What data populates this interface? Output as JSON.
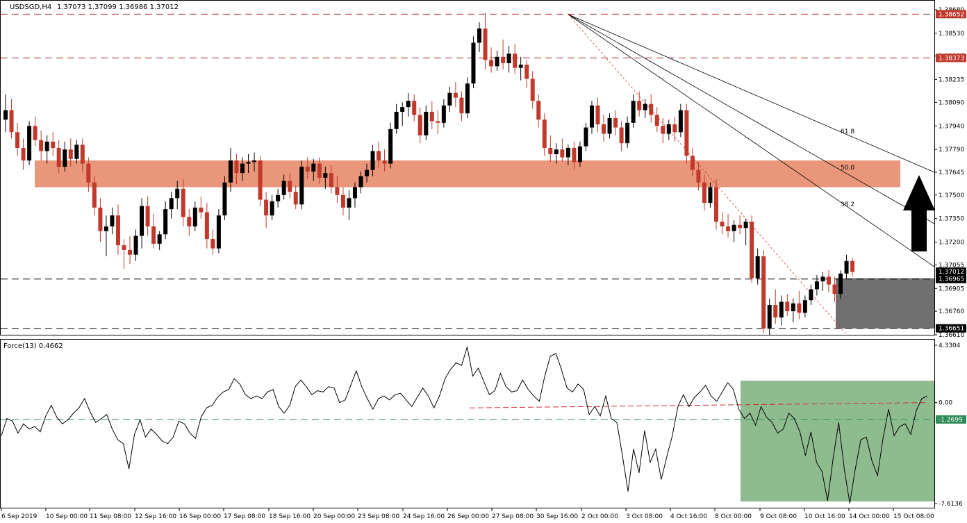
{
  "header": {
    "symbol": "USDSGD,H4",
    "ohlc": "1.37073 1.37099 1.36986 1.37012"
  },
  "indicator": {
    "label": "Force(13) 0.4662",
    "ticks": [
      "4.3304",
      "0.00",
      "-7.6136"
    ],
    "level_tag": "-1.2699"
  },
  "price_axis": {
    "ticks": [
      "1.38680",
      "1.38530",
      "1.38385",
      "1.38235",
      "1.38090",
      "1.37940",
      "1.37790",
      "1.37645",
      "1.37500",
      "1.37350",
      "1.37200",
      "1.37055",
      "1.36905",
      "1.36760",
      "1.36610"
    ],
    "levels": [
      {
        "value": "1.38652",
        "style": "red-dash"
      },
      {
        "value": "1.38373",
        "style": "red-dash"
      },
      {
        "value": "1.36965",
        "style": "black-dash"
      },
      {
        "value": "1.36651",
        "style": "black-dash"
      }
    ],
    "current": "1.37012"
  },
  "fib_labels": [
    "61.8",
    "50.0",
    "38.2"
  ],
  "time_axis": [
    "6 Sep 2019",
    "10 Sep 00:00",
    "11 Sep 08:00",
    "12 Sep 16:00",
    "16 Sep 00:00",
    "17 Sep 08:00",
    "18 Sep 16:00",
    "20 Sep 00:00",
    "23 Sep 08:00",
    "24 Sep 16:00",
    "26 Sep 00:00",
    "27 Sep 08:00",
    "30 Sep 16:00",
    "2 Oct 00:00",
    "3 Oct 08:00",
    "4 Oct 16:00",
    "8 Oct 00:00",
    "9 Oct 08:00",
    "10 Oct 16:00",
    "14 Oct 00:00",
    "15 Oct 08:00"
  ],
  "colors": {
    "bull": "#000000",
    "bear": "#c0392b",
    "resistance_zone": "#e9967a",
    "support_zone": "#707070",
    "force_zone": "#8fbc8f",
    "level_red": "#b22222",
    "arrow": "#000000"
  },
  "chart_data": {
    "type": "candlestick",
    "symbol": "USDSGD",
    "timeframe": "H4",
    "ylim": [
      1.3661,
      1.3868
    ],
    "resistance_zone": [
      1.3755,
      1.3772
    ],
    "support_zone": [
      1.3665,
      1.3697
    ],
    "candles": [
      {
        "o": 1.3798,
        "h": 1.3814,
        "l": 1.379,
        "c": 1.3804
      },
      {
        "o": 1.3804,
        "h": 1.3811,
        "l": 1.3786,
        "c": 1.379
      },
      {
        "o": 1.379,
        "h": 1.3796,
        "l": 1.3775,
        "c": 1.378
      },
      {
        "o": 1.378,
        "h": 1.3786,
        "l": 1.3766,
        "c": 1.3772
      },
      {
        "o": 1.3772,
        "h": 1.3797,
        "l": 1.3769,
        "c": 1.3794
      },
      {
        "o": 1.3794,
        "h": 1.38,
        "l": 1.3781,
        "c": 1.3785
      },
      {
        "o": 1.3785,
        "h": 1.3791,
        "l": 1.3772,
        "c": 1.3778
      },
      {
        "o": 1.3778,
        "h": 1.3788,
        "l": 1.377,
        "c": 1.3784
      },
      {
        "o": 1.3784,
        "h": 1.379,
        "l": 1.3775,
        "c": 1.378
      },
      {
        "o": 1.378,
        "h": 1.3785,
        "l": 1.3764,
        "c": 1.3768
      },
      {
        "o": 1.3768,
        "h": 1.3784,
        "l": 1.3765,
        "c": 1.3779
      },
      {
        "o": 1.3779,
        "h": 1.3786,
        "l": 1.3768,
        "c": 1.3773
      },
      {
        "o": 1.3773,
        "h": 1.3785,
        "l": 1.377,
        "c": 1.3782
      },
      {
        "o": 1.3782,
        "h": 1.3786,
        "l": 1.3765,
        "c": 1.377
      },
      {
        "o": 1.377,
        "h": 1.3774,
        "l": 1.3752,
        "c": 1.3758
      },
      {
        "o": 1.3758,
        "h": 1.3762,
        "l": 1.3737,
        "c": 1.3742
      },
      {
        "o": 1.3742,
        "h": 1.3748,
        "l": 1.372,
        "c": 1.3727
      },
      {
        "o": 1.3727,
        "h": 1.3737,
        "l": 1.3711,
        "c": 1.373
      },
      {
        "o": 1.373,
        "h": 1.3742,
        "l": 1.3725,
        "c": 1.3737
      },
      {
        "o": 1.3737,
        "h": 1.3744,
        "l": 1.3712,
        "c": 1.3718
      },
      {
        "o": 1.3718,
        "h": 1.3722,
        "l": 1.3703,
        "c": 1.3715
      },
      {
        "o": 1.3715,
        "h": 1.3724,
        "l": 1.3706,
        "c": 1.3712
      },
      {
        "o": 1.3712,
        "h": 1.3728,
        "l": 1.3708,
        "c": 1.3724
      },
      {
        "o": 1.3724,
        "h": 1.3748,
        "l": 1.3716,
        "c": 1.3743
      },
      {
        "o": 1.3743,
        "h": 1.3749,
        "l": 1.3724,
        "c": 1.373
      },
      {
        "o": 1.373,
        "h": 1.3738,
        "l": 1.3716,
        "c": 1.3719
      },
      {
        "o": 1.3719,
        "h": 1.3727,
        "l": 1.3715,
        "c": 1.3725
      },
      {
        "o": 1.3725,
        "h": 1.3746,
        "l": 1.3722,
        "c": 1.3741
      },
      {
        "o": 1.3741,
        "h": 1.3752,
        "l": 1.3735,
        "c": 1.3748
      },
      {
        "o": 1.3748,
        "h": 1.3759,
        "l": 1.3741,
        "c": 1.3754
      },
      {
        "o": 1.3754,
        "h": 1.376,
        "l": 1.373,
        "c": 1.3736
      },
      {
        "o": 1.3736,
        "h": 1.3741,
        "l": 1.3724,
        "c": 1.373
      },
      {
        "o": 1.373,
        "h": 1.3746,
        "l": 1.3727,
        "c": 1.3742
      },
      {
        "o": 1.3742,
        "h": 1.3749,
        "l": 1.3735,
        "c": 1.3739
      },
      {
        "o": 1.3739,
        "h": 1.3745,
        "l": 1.3716,
        "c": 1.3722
      },
      {
        "o": 1.3722,
        "h": 1.3728,
        "l": 1.3712,
        "c": 1.3716
      },
      {
        "o": 1.3716,
        "h": 1.3741,
        "l": 1.3713,
        "c": 1.3737
      },
      {
        "o": 1.3737,
        "h": 1.3762,
        "l": 1.3734,
        "c": 1.3758
      },
      {
        "o": 1.3758,
        "h": 1.378,
        "l": 1.3752,
        "c": 1.3772
      },
      {
        "o": 1.3772,
        "h": 1.3776,
        "l": 1.3757,
        "c": 1.3764
      },
      {
        "o": 1.3764,
        "h": 1.3774,
        "l": 1.3759,
        "c": 1.377
      },
      {
        "o": 1.377,
        "h": 1.3776,
        "l": 1.3764,
        "c": 1.3771
      },
      {
        "o": 1.3771,
        "h": 1.3777,
        "l": 1.3765,
        "c": 1.3772
      },
      {
        "o": 1.3772,
        "h": 1.3775,
        "l": 1.3743,
        "c": 1.3747
      },
      {
        "o": 1.3747,
        "h": 1.3752,
        "l": 1.3729,
        "c": 1.3737
      },
      {
        "o": 1.3737,
        "h": 1.375,
        "l": 1.3734,
        "c": 1.3746
      },
      {
        "o": 1.3746,
        "h": 1.3754,
        "l": 1.3742,
        "c": 1.375
      },
      {
        "o": 1.375,
        "h": 1.3763,
        "l": 1.3747,
        "c": 1.3759
      },
      {
        "o": 1.3759,
        "h": 1.3764,
        "l": 1.3748,
        "c": 1.3752
      },
      {
        "o": 1.3752,
        "h": 1.3756,
        "l": 1.3741,
        "c": 1.3744
      },
      {
        "o": 1.3744,
        "h": 1.3772,
        "l": 1.3741,
        "c": 1.3768
      },
      {
        "o": 1.3768,
        "h": 1.3774,
        "l": 1.376,
        "c": 1.3765
      },
      {
        "o": 1.3765,
        "h": 1.3773,
        "l": 1.3759,
        "c": 1.377
      },
      {
        "o": 1.377,
        "h": 1.3774,
        "l": 1.3757,
        "c": 1.3761
      },
      {
        "o": 1.3761,
        "h": 1.3768,
        "l": 1.3754,
        "c": 1.3764
      },
      {
        "o": 1.3764,
        "h": 1.3769,
        "l": 1.3751,
        "c": 1.3755
      },
      {
        "o": 1.3755,
        "h": 1.3762,
        "l": 1.3745,
        "c": 1.375
      },
      {
        "o": 1.375,
        "h": 1.3755,
        "l": 1.3737,
        "c": 1.3742
      },
      {
        "o": 1.3742,
        "h": 1.3753,
        "l": 1.3734,
        "c": 1.3748
      },
      {
        "o": 1.3748,
        "h": 1.3758,
        "l": 1.3742,
        "c": 1.3755
      },
      {
        "o": 1.3755,
        "h": 1.3765,
        "l": 1.3751,
        "c": 1.3762
      },
      {
        "o": 1.3762,
        "h": 1.377,
        "l": 1.3758,
        "c": 1.3766
      },
      {
        "o": 1.3766,
        "h": 1.3782,
        "l": 1.3762,
        "c": 1.3778
      },
      {
        "o": 1.3778,
        "h": 1.3784,
        "l": 1.3767,
        "c": 1.3772
      },
      {
        "o": 1.3772,
        "h": 1.3779,
        "l": 1.3765,
        "c": 1.377
      },
      {
        "o": 1.377,
        "h": 1.3796,
        "l": 1.3767,
        "c": 1.3792
      },
      {
        "o": 1.3792,
        "h": 1.3808,
        "l": 1.3789,
        "c": 1.3803
      },
      {
        "o": 1.3803,
        "h": 1.3809,
        "l": 1.3794,
        "c": 1.3806
      },
      {
        "o": 1.3806,
        "h": 1.3815,
        "l": 1.38,
        "c": 1.381
      },
      {
        "o": 1.381,
        "h": 1.3814,
        "l": 1.3797,
        "c": 1.3801
      },
      {
        "o": 1.3801,
        "h": 1.3806,
        "l": 1.3783,
        "c": 1.3788
      },
      {
        "o": 1.3788,
        "h": 1.3807,
        "l": 1.3785,
        "c": 1.3803
      },
      {
        "o": 1.3803,
        "h": 1.381,
        "l": 1.3792,
        "c": 1.3797
      },
      {
        "o": 1.3797,
        "h": 1.3804,
        "l": 1.3789,
        "c": 1.3796
      },
      {
        "o": 1.3796,
        "h": 1.3811,
        "l": 1.3793,
        "c": 1.3807
      },
      {
        "o": 1.3807,
        "h": 1.3819,
        "l": 1.3803,
        "c": 1.3815
      },
      {
        "o": 1.3815,
        "h": 1.3822,
        "l": 1.3806,
        "c": 1.3812
      },
      {
        "o": 1.3812,
        "h": 1.3816,
        "l": 1.3797,
        "c": 1.3802
      },
      {
        "o": 1.3802,
        "h": 1.3825,
        "l": 1.3799,
        "c": 1.3821
      },
      {
        "o": 1.3821,
        "h": 1.3851,
        "l": 1.3818,
        "c": 1.3847
      },
      {
        "o": 1.3847,
        "h": 1.386,
        "l": 1.3841,
        "c": 1.3856
      },
      {
        "o": 1.3856,
        "h": 1.3866,
        "l": 1.383,
        "c": 1.3836
      },
      {
        "o": 1.3836,
        "h": 1.3844,
        "l": 1.3828,
        "c": 1.3832
      },
      {
        "o": 1.3832,
        "h": 1.3842,
        "l": 1.3829,
        "c": 1.3838
      },
      {
        "o": 1.3838,
        "h": 1.3849,
        "l": 1.383,
        "c": 1.3834
      },
      {
        "o": 1.3834,
        "h": 1.3845,
        "l": 1.3828,
        "c": 1.384
      },
      {
        "o": 1.384,
        "h": 1.3846,
        "l": 1.3827,
        "c": 1.3831
      },
      {
        "o": 1.3831,
        "h": 1.3838,
        "l": 1.3823,
        "c": 1.3833
      },
      {
        "o": 1.3833,
        "h": 1.3836,
        "l": 1.3818,
        "c": 1.3824
      },
      {
        "o": 1.3824,
        "h": 1.3829,
        "l": 1.3805,
        "c": 1.381
      },
      {
        "o": 1.381,
        "h": 1.3814,
        "l": 1.3793,
        "c": 1.3798
      },
      {
        "o": 1.3798,
        "h": 1.3802,
        "l": 1.3775,
        "c": 1.378
      },
      {
        "o": 1.378,
        "h": 1.3788,
        "l": 1.3771,
        "c": 1.3776
      },
      {
        "o": 1.3776,
        "h": 1.3783,
        "l": 1.377,
        "c": 1.3779
      },
      {
        "o": 1.3779,
        "h": 1.3786,
        "l": 1.3771,
        "c": 1.3774
      },
      {
        "o": 1.3774,
        "h": 1.3782,
        "l": 1.3769,
        "c": 1.378
      },
      {
        "o": 1.378,
        "h": 1.3784,
        "l": 1.3766,
        "c": 1.3771
      },
      {
        "o": 1.3771,
        "h": 1.3784,
        "l": 1.3768,
        "c": 1.3781
      },
      {
        "o": 1.3781,
        "h": 1.3796,
        "l": 1.3778,
        "c": 1.3793
      },
      {
        "o": 1.3793,
        "h": 1.381,
        "l": 1.3789,
        "c": 1.3807
      },
      {
        "o": 1.3807,
        "h": 1.3812,
        "l": 1.379,
        "c": 1.3795
      },
      {
        "o": 1.3795,
        "h": 1.3801,
        "l": 1.3784,
        "c": 1.3789
      },
      {
        "o": 1.3789,
        "h": 1.3802,
        "l": 1.3786,
        "c": 1.3799
      },
      {
        "o": 1.3799,
        "h": 1.3804,
        "l": 1.3788,
        "c": 1.3793
      },
      {
        "o": 1.3793,
        "h": 1.3797,
        "l": 1.3778,
        "c": 1.3783
      },
      {
        "o": 1.3783,
        "h": 1.38,
        "l": 1.378,
        "c": 1.3796
      },
      {
        "o": 1.3796,
        "h": 1.3814,
        "l": 1.3793,
        "c": 1.381
      },
      {
        "o": 1.381,
        "h": 1.3816,
        "l": 1.38,
        "c": 1.3804
      },
      {
        "o": 1.3804,
        "h": 1.3811,
        "l": 1.3799,
        "c": 1.3808
      },
      {
        "o": 1.3808,
        "h": 1.3814,
        "l": 1.3796,
        "c": 1.3801
      },
      {
        "o": 1.3801,
        "h": 1.3806,
        "l": 1.379,
        "c": 1.3794
      },
      {
        "o": 1.3794,
        "h": 1.3799,
        "l": 1.3783,
        "c": 1.3789
      },
      {
        "o": 1.3789,
        "h": 1.3798,
        "l": 1.3785,
        "c": 1.3795
      },
      {
        "o": 1.3795,
        "h": 1.38,
        "l": 1.3784,
        "c": 1.379
      },
      {
        "o": 1.379,
        "h": 1.3808,
        "l": 1.3787,
        "c": 1.3804
      },
      {
        "o": 1.3804,
        "h": 1.3808,
        "l": 1.377,
        "c": 1.3775
      },
      {
        "o": 1.3775,
        "h": 1.378,
        "l": 1.3762,
        "c": 1.3766
      },
      {
        "o": 1.3766,
        "h": 1.3771,
        "l": 1.3753,
        "c": 1.3758
      },
      {
        "o": 1.3758,
        "h": 1.3763,
        "l": 1.374,
        "c": 1.3745
      },
      {
        "o": 1.3745,
        "h": 1.3758,
        "l": 1.3742,
        "c": 1.3755
      },
      {
        "o": 1.3755,
        "h": 1.376,
        "l": 1.3728,
        "c": 1.3733
      },
      {
        "o": 1.3733,
        "h": 1.3739,
        "l": 1.3725,
        "c": 1.373
      },
      {
        "o": 1.373,
        "h": 1.3738,
        "l": 1.3723,
        "c": 1.3727
      },
      {
        "o": 1.3727,
        "h": 1.3734,
        "l": 1.372,
        "c": 1.3731
      },
      {
        "o": 1.3731,
        "h": 1.3737,
        "l": 1.3725,
        "c": 1.3729
      },
      {
        "o": 1.3729,
        "h": 1.3735,
        "l": 1.3718,
        "c": 1.3733
      },
      {
        "o": 1.3733,
        "h": 1.3737,
        "l": 1.3694,
        "c": 1.3697
      },
      {
        "o": 1.3697,
        "h": 1.3716,
        "l": 1.3693,
        "c": 1.3711
      },
      {
        "o": 1.3711,
        "h": 1.3715,
        "l": 1.3662,
        "c": 1.3665
      },
      {
        "o": 1.3665,
        "h": 1.3684,
        "l": 1.3661,
        "c": 1.368
      },
      {
        "o": 1.368,
        "h": 1.369,
        "l": 1.3668,
        "c": 1.3672
      },
      {
        "o": 1.3672,
        "h": 1.3686,
        "l": 1.3667,
        "c": 1.3682
      },
      {
        "o": 1.3682,
        "h": 1.3687,
        "l": 1.3673,
        "c": 1.3676
      },
      {
        "o": 1.3676,
        "h": 1.3684,
        "l": 1.3669,
        "c": 1.3681
      },
      {
        "o": 1.3681,
        "h": 1.3689,
        "l": 1.3671,
        "c": 1.3675
      },
      {
        "o": 1.3675,
        "h": 1.3686,
        "l": 1.3672,
        "c": 1.3683
      },
      {
        "o": 1.3683,
        "h": 1.3693,
        "l": 1.368,
        "c": 1.369
      },
      {
        "o": 1.369,
        "h": 1.3699,
        "l": 1.3686,
        "c": 1.3695
      },
      {
        "o": 1.3695,
        "h": 1.3701,
        "l": 1.3689,
        "c": 1.3698
      },
      {
        "o": 1.3698,
        "h": 1.3702,
        "l": 1.3688,
        "c": 1.3693
      },
      {
        "o": 1.3693,
        "h": 1.3698,
        "l": 1.3682,
        "c": 1.3687
      },
      {
        "o": 1.3687,
        "h": 1.3702,
        "l": 1.3684,
        "c": 1.37
      },
      {
        "o": 1.37,
        "h": 1.3712,
        "l": 1.3697,
        "c": 1.3708
      },
      {
        "o": 1.3708,
        "h": 1.371,
        "l": 1.3698,
        "c": 1.3701
      }
    ],
    "force": [
      -2.5,
      -1.2,
      -1.4,
      -2.3,
      -1.6,
      -2.0,
      -1.8,
      -2.2,
      -1.0,
      -0.2,
      -1.1,
      -1.6,
      -1.3,
      -0.8,
      -0.4,
      0.3,
      -0.7,
      -1.5,
      -1.2,
      -0.9,
      -2.0,
      -2.8,
      -3.1,
      -5.0,
      -2.4,
      -1.3,
      -2.6,
      -2.0,
      -2.4,
      -2.9,
      -3.1,
      -2.6,
      -1.4,
      -1.6,
      -2.3,
      -2.7,
      -1.1,
      -0.4,
      -0.2,
      0.4,
      0.8,
      1.0,
      1.8,
      1.4,
      0.6,
      0.3,
      0.5,
      0.3,
      0.8,
      1.0,
      -0.3,
      -0.8,
      -0.2,
      1.2,
      1.7,
      1.2,
      0.6,
      0.9,
      0.8,
      1.2,
      1.1,
      0.0,
      0.2,
      1.3,
      2.4,
      1.2,
      0.3,
      -0.5,
      0.3,
      0.5,
      0.2,
      0.6,
      0.7,
      0.2,
      -0.3,
      0.4,
      1.1,
      0.5,
      -0.4,
      0.5,
      1.8,
      2.5,
      3.0,
      2.8,
      4.2,
      2.0,
      2.6,
      1.6,
      0.6,
      0.9,
      2.2,
      1.2,
      0.8,
      0.9,
      1.7,
      1.0,
      0.5,
      0.1,
      2.0,
      3.5,
      3.7,
      2.5,
      1.1,
      0.8,
      1.4,
      1.0,
      -0.9,
      -0.3,
      -1.0,
      0.5,
      -1.2,
      -1.5,
      -4.0,
      -6.7,
      -3.5,
      -5.3,
      -2.1,
      -4.5,
      -3.5,
      -5.8,
      -4.1,
      -2.5,
      -0.3,
      0.6,
      -0.3,
      0.4,
      0.8,
      1.3,
      0.5,
      0.1,
      0.8,
      1.5,
      1.0,
      -0.5,
      -1.2,
      -0.8,
      -1.7,
      -0.3,
      -1.1,
      -1.5,
      -2.3,
      -2.0,
      -0.8,
      -1.2,
      -2.2,
      -4.0,
      -2.2,
      -4.5,
      -5.2,
      -7.4,
      -4.2,
      -1.5,
      -5.0,
      -7.6,
      -5.0,
      -2.8,
      -2.6,
      -4.4,
      -5.5,
      -2.7,
      -0.5,
      -2.5,
      -1.8,
      -1.6,
      -2.4,
      -0.6,
      0.3,
      0.5
    ],
    "force_level": -1.2699
  }
}
